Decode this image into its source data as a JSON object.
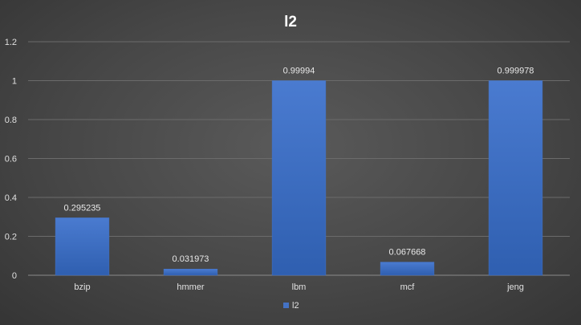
{
  "chart_data": {
    "type": "bar",
    "title": "l2",
    "categories": [
      "bzip",
      "hmmer",
      "lbm",
      "mcf",
      "jeng"
    ],
    "series": [
      {
        "name": "l2",
        "values": [
          0.295235,
          0.031973,
          0.99994,
          0.067668,
          0.999978
        ],
        "color": "#4472C4"
      }
    ],
    "data_labels": [
      "0.295235",
      "0.031973",
      "0.99994",
      "0.067668",
      "0.999978"
    ],
    "yticks": [
      "0",
      "0.2",
      "0.4",
      "0.6",
      "0.8",
      "1",
      "1.2"
    ],
    "ylim": [
      0,
      1.2
    ],
    "xlabel": "",
    "ylabel": "",
    "grid": true,
    "legend": "bottom"
  }
}
